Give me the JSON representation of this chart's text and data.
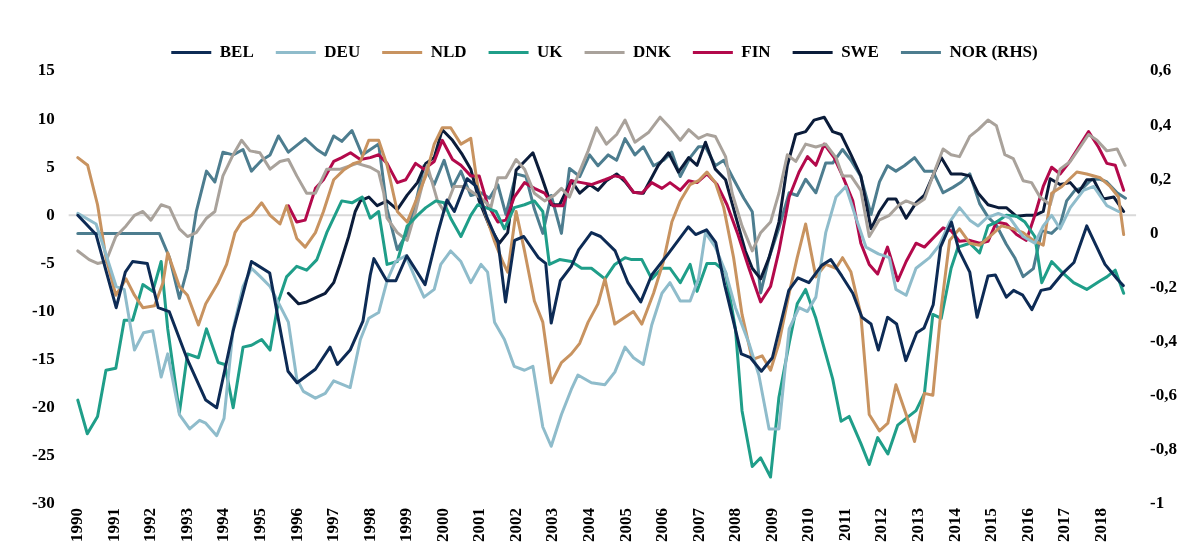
{
  "chart_data": {
    "type": "line",
    "legend": "top",
    "marker": "none",
    "ref_lines": [
      {
        "axis": "y",
        "value": 0,
        "color": "#d9d9d9"
      }
    ],
    "xlim": [
      1989.75,
      2018.95
    ],
    "xticks": [
      1990,
      1991,
      1992,
      1993,
      1994,
      1995,
      1996,
      1997,
      1998,
      1999,
      2000,
      2001,
      2002,
      2003,
      2004,
      2005,
      2006,
      2007,
      2008,
      2009,
      2010,
      2011,
      2012,
      2013,
      2014,
      2015,
      2016,
      2017,
      2018
    ],
    "ylim": [
      -30,
      15
    ],
    "yticks": [
      -30,
      -25,
      -20,
      -15,
      -10,
      -5,
      0,
      5,
      10,
      15
    ],
    "y2lim": [
      -1,
      0.6
    ],
    "y2ticks": [
      -1,
      {
        "value": -0.8,
        "label": "-0,8"
      },
      {
        "value": -0.6,
        "label": "-0,6"
      },
      {
        "value": -0.4,
        "label": "-0,4"
      },
      {
        "value": -0.2,
        "label": "-0,2"
      },
      0,
      {
        "value": 0.2,
        "label": "0,2"
      },
      {
        "value": 0.4,
        "label": "0,4"
      },
      {
        "value": 0.6,
        "label": "0,6"
      }
    ],
    "series": [
      {
        "name": "BEL",
        "color": "#0d2b55",
        "x": [
          1990,
          1990.5,
          1991.05,
          1991.3,
          1991.5,
          1991.9,
          1992.2,
          1992.5,
          1993,
          1993.5,
          1993.8,
          1994.25,
          1994.75,
          1995.25,
          1995.75,
          1996,
          1996.5,
          1996.9,
          1997.1,
          1997.45,
          1997.8,
          1998,
          1998.1,
          1998.45,
          1998.7,
          1999,
          1999.5,
          1999.85,
          2000.1,
          2000.3,
          2000.65,
          2000.9,
          2001.2,
          2001.5,
          2001.7,
          2001.95,
          2002.2,
          2002.6,
          2002.8,
          2002.95,
          2003.2,
          2003.5,
          2003.7,
          2004.05,
          2004.3,
          2004.7,
          2005.05,
          2005.4,
          2005.7,
          2006.15,
          2006.7,
          2006.9,
          2007.2,
          2007.45,
          2007.7,
          2008.15,
          2008.4,
          2008.7,
          2009,
          2009.45,
          2009.7,
          2010,
          2010.35,
          2010.6,
          2010.9,
          2011.2,
          2011.45,
          2011.7,
          2011.9,
          2012.15,
          2012.4,
          2012.65,
          2012.95,
          2013.15,
          2013.4,
          2013.6,
          2013.9,
          2014.1,
          2014.4,
          2014.6,
          2014.9,
          2015.1,
          2015.4,
          2015.6,
          2015.85,
          2016.1,
          2016.35,
          2016.6,
          2016.95,
          2017.25,
          2017.6,
          2017.85,
          2018.1,
          2018.45,
          2018.6
        ],
        "values": [
          0,
          -2,
          -9.6,
          -5.9,
          -4.8,
          -5,
          -9.6,
          -10,
          -15,
          -19.2,
          -20,
          -12,
          -4.8,
          -6,
          -16.2,
          -17.4,
          -16,
          -13.7,
          -15.5,
          -14,
          -11,
          -6.2,
          -4.5,
          -6.8,
          -6.8,
          -4.2,
          -7.2,
          -1.8,
          1.6,
          0.4,
          3.8,
          3,
          -0.3,
          -2.9,
          -9,
          -2.6,
          -2.2,
          -4.4,
          -5,
          -11.2,
          -6.8,
          -5.3,
          -3.6,
          -1.8,
          -2.2,
          -3.7,
          -7,
          -9,
          -6.2,
          -4,
          -1.2,
          -2,
          -1.5,
          -2.8,
          -7.3,
          -14.4,
          -14.8,
          -16.2,
          -14.8,
          -7.8,
          -6.5,
          -7,
          -5.2,
          -4.6,
          -6.3,
          -8.1,
          -10.6,
          -11.3,
          -14,
          -10.6,
          -11.3,
          -15.1,
          -12.2,
          -11.7,
          -9.3,
          -3.3,
          -0.7,
          -3.6,
          -5.9,
          -10.6,
          -6.3,
          -6.2,
          -8.5,
          -7.8,
          -8.3,
          -9.8,
          -7.8,
          -7.6,
          -6,
          -4.9,
          -1.1,
          -3.1,
          -5.1,
          -6.7,
          -7.3
        ]
      },
      {
        "name": "DEU",
        "color": "#8fbccb",
        "x": [
          1990,
          1990.5,
          1990.8,
          1991.05,
          1991.27,
          1991.55,
          1991.8,
          1992.05,
          1992.28,
          1992.46,
          1992.78,
          1993.06,
          1993.33,
          1993.5,
          1993.8,
          1994,
          1994.25,
          1994.52,
          1994.75,
          1995,
          1995.26,
          1995.76,
          1995.99,
          1996.17,
          1996.5,
          1996.77,
          1997,
          1997.45,
          1997.73,
          1997.96,
          1998.23,
          1998.46,
          1998.69,
          1998.97,
          1999.24,
          1999.47,
          1999.75,
          1999.93,
          2000.2,
          2000.48,
          2000.75,
          2001.03,
          2001.21,
          2001.4,
          2001.67,
          2001.94,
          2002.22,
          2002.45,
          2002.72,
          2002.95,
          2003.23,
          2003.5,
          2003.68,
          2004.05,
          2004.42,
          2004.69,
          2004.97,
          2005.2,
          2005.47,
          2005.7,
          2005.98,
          2006.2,
          2006.48,
          2006.75,
          2006.98,
          2007.17,
          2007.44,
          2007.72,
          2007.99,
          2008.36,
          2008.63,
          2008.91,
          2009.18,
          2009.46,
          2009.73,
          2009.96,
          2010.19,
          2010.46,
          2010.74,
          2011.01,
          2011.29,
          2011.56,
          2011.9,
          2012.2,
          2012.38,
          2012.66,
          2012.93,
          2013.3,
          2013.57,
          2013.85,
          2014.12,
          2014.4,
          2014.63,
          2014.85,
          2015.18,
          2015.5,
          2015.86,
          2016.18,
          2016.41,
          2016.64,
          2016.87,
          2017.15,
          2017.51,
          2017.79,
          2018.15,
          2018.47
        ],
        "values": [
          0.2,
          -0.9,
          -4.4,
          -7.4,
          -7.7,
          -14,
          -12.2,
          -12,
          -16.8,
          -14.4,
          -20.7,
          -22.2,
          -21.3,
          -21.6,
          -22.9,
          -21.1,
          -11.8,
          -7.4,
          -5.5,
          -6.4,
          -7.4,
          -11.1,
          -17,
          -18.3,
          -19,
          -18.5,
          -17.2,
          -17.9,
          -12.9,
          -10.7,
          -10.1,
          -6.8,
          -4.8,
          -4.2,
          -6.6,
          -8.5,
          -7.7,
          -5.1,
          -3.7,
          -4.8,
          -7,
          -5.1,
          -5.9,
          -11.1,
          -12.9,
          -15.7,
          -16.1,
          -15.7,
          -22,
          -24,
          -20.7,
          -18.1,
          -16.6,
          -17.4,
          -17.6,
          -16.3,
          -13.7,
          -14.8,
          -15.5,
          -11.4,
          -8.1,
          -7,
          -8.9,
          -8.9,
          -6.6,
          -1.8,
          -3.3,
          -5.9,
          -9.6,
          -13.3,
          -16.6,
          -22.2,
          -22.2,
          -11.8,
          -9.6,
          -10,
          -8.5,
          -1.8,
          1.9,
          3,
          -0.3,
          -3.3,
          -4,
          -4.4,
          -7.7,
          -8.3,
          -5.5,
          -4.4,
          -3.1,
          -0.7,
          0.8,
          -0.5,
          -1.1,
          -0.3,
          0.2,
          -0.3,
          -2.2,
          -2.9,
          -1.1,
          0,
          -1.4,
          0.8,
          2.6,
          3,
          1,
          0.4
        ]
      },
      {
        "name": "NLD",
        "color": "#c89360",
        "x": [
          1990,
          1990.27,
          1990.54,
          1990.77,
          1991.04,
          1991.32,
          1991.55,
          1991.78,
          1992.1,
          1992.33,
          1992.46,
          1992.78,
          1993,
          1993.3,
          1993.5,
          1993.84,
          1994.07,
          1994.3,
          1994.48,
          1994.75,
          1995.03,
          1995.26,
          1995.53,
          1995.71,
          1995.99,
          1996.22,
          1996.5,
          1996.72,
          1997,
          1997.27,
          1997.55,
          1997.73,
          1997.96,
          1998.23,
          1998.46,
          1998.74,
          1999.01,
          1999.29,
          1999.52,
          1999.75,
          1999.97,
          2000.2,
          2000.48,
          2000.75,
          2000.94,
          2001.16,
          2001.39,
          2001.62,
          2001.76,
          2001.99,
          2002.22,
          2002.49,
          2002.72,
          2002.95,
          2003.23,
          2003.5,
          2003.73,
          2003.96,
          2004.23,
          2004.42,
          2004.69,
          2005.2,
          2005.43,
          2005.75,
          2006.02,
          2006.25,
          2006.48,
          2006.75,
          2006.98,
          2007.21,
          2007.44,
          2007.67,
          2007.94,
          2008.17,
          2008.45,
          2008.72,
          2008.95,
          2009.18,
          2009.46,
          2009.68,
          2009.91,
          2010.19,
          2010.46,
          2010.74,
          2010.92,
          2011.15,
          2011.42,
          2011.65,
          2011.93,
          2012.16,
          2012.38,
          2012.66,
          2012.89,
          2013.16,
          2013.39,
          2013.62,
          2013.85,
          2014.12,
          2014.4,
          2014.67,
          2014.95,
          2015.27,
          2015.59,
          2015.86,
          2016.14,
          2016.41,
          2016.64,
          2016.92,
          2017.33,
          2017.6,
          2017.97,
          2018.24,
          2018.47,
          2018.61
        ],
        "values": [
          6,
          5.2,
          1.1,
          -4.4,
          -8.3,
          -6.6,
          -8.3,
          -9.6,
          -9.4,
          -7,
          -3.9,
          -7.4,
          -8.3,
          -11.4,
          -9.2,
          -7,
          -5.1,
          -1.8,
          -0.7,
          0,
          1.3,
          0,
          -0.9,
          1,
          -2.4,
          -3.3,
          -1.8,
          0.4,
          3.7,
          4.7,
          5.4,
          5.6,
          7.8,
          7.8,
          5.2,
          0.4,
          -0.7,
          1.9,
          4.1,
          7.4,
          9.1,
          9.1,
          7.4,
          8,
          3,
          0,
          -2.6,
          -4.8,
          -5.9,
          0.4,
          -3.7,
          -8.9,
          -11.1,
          -17.4,
          -15.3,
          -14.4,
          -13.3,
          -11.1,
          -9.2,
          -6.6,
          -11.3,
          -10,
          -11.3,
          -8.1,
          -4.8,
          -0.7,
          1.5,
          3.2,
          3.6,
          4.5,
          3.4,
          0.8,
          -4.4,
          -10.3,
          -15,
          -14.6,
          -16.1,
          -13.3,
          -8.1,
          -4.4,
          -0.9,
          -6.4,
          -5.1,
          -5.5,
          -4.4,
          -5.9,
          -10.3,
          -20.7,
          -22.4,
          -21.6,
          -17.6,
          -20.7,
          -23.5,
          -18.5,
          -18.7,
          -9.6,
          -2.6,
          -1.4,
          -2.9,
          -3.1,
          -2.2,
          -1.1,
          -1.4,
          -1.8,
          -2.6,
          -3.1,
          2.3,
          3,
          4.5,
          4.3,
          3.9,
          3,
          1.9,
          -2
        ]
      },
      {
        "name": "UK",
        "color": "#1f9e89",
        "x": [
          1990,
          1990.26,
          1990.54,
          1990.77,
          1991.04,
          1991.27,
          1991.5,
          1991.78,
          1992.05,
          1992.28,
          1992.46,
          1992.78,
          1993,
          1993.3,
          1993.52,
          1993.84,
          1994.02,
          1994.25,
          1994.52,
          1994.75,
          1995.03,
          1995.26,
          1995.49,
          1995.71,
          1995.99,
          1996.26,
          1996.54,
          1996.81,
          1997.22,
          1997.5,
          1997.78,
          1998,
          1998.23,
          1998.46,
          1998.74,
          1999.01,
          1999.29,
          1999.52,
          1999.79,
          2000.02,
          2000.2,
          2000.48,
          2000.75,
          2000.94,
          2001.16,
          2001.44,
          2001.67,
          2001.94,
          2002.22,
          2002.49,
          2002.72,
          2002.9,
          2003.18,
          2003.5,
          2003.78,
          2004.05,
          2004.42,
          2004.69,
          2004.97,
          2005.15,
          2005.43,
          2005.7,
          2005.98,
          2006.2,
          2006.48,
          2006.75,
          2006.94,
          2007.21,
          2007.44,
          2007.72,
          2007.99,
          2008.17,
          2008.45,
          2008.68,
          2008.95,
          2009.18,
          2009.46,
          2009.68,
          2009.91,
          2010.19,
          2010.46,
          2010.65,
          2010.88,
          2011.1,
          2011.42,
          2011.65,
          2011.88,
          2012.16,
          2012.43,
          2012.66,
          2012.93,
          2013.16,
          2013.39,
          2013.62,
          2013.89,
          2014.08,
          2014.4,
          2014.67,
          2014.9,
          2015.13,
          2015.4,
          2015.68,
          2015.91,
          2016.18,
          2016.37,
          2016.64,
          2016.92,
          2017.24,
          2017.6,
          2017.97,
          2018.15,
          2018.38,
          2018.61
        ],
        "values": [
          -19.2,
          -22.7,
          -20.9,
          -16.1,
          -15.9,
          -10.9,
          -10.9,
          -7.2,
          -7.9,
          -4.8,
          -11.8,
          -20.5,
          -14.4,
          -14.8,
          -11.8,
          -15.3,
          -15.5,
          -20,
          -13.7,
          -13.5,
          -12.9,
          -14,
          -8.9,
          -6.4,
          -5.3,
          -5.7,
          -4.6,
          -1.8,
          1.5,
          1.3,
          1.9,
          -0.3,
          0.4,
          -5.1,
          -4.8,
          -1.1,
          0,
          0.8,
          1.5,
          1.3,
          -0.3,
          -2.2,
          0,
          1.1,
          0.8,
          0.4,
          -1.4,
          0.8,
          1.1,
          1.5,
          0.4,
          -5.1,
          -4.6,
          -4.8,
          -5.5,
          -5.5,
          -6.6,
          -5.1,
          -4.4,
          -4.6,
          -4.6,
          -6.6,
          -5.5,
          -5.5,
          -7,
          -5.1,
          -7.9,
          -5,
          -5,
          -5.9,
          -11.8,
          -20.3,
          -26.1,
          -25.2,
          -27.2,
          -18.9,
          -13.3,
          -9.2,
          -7.7,
          -10.7,
          -14.4,
          -17,
          -21.4,
          -20.9,
          -23.7,
          -25.9,
          -23.1,
          -24.8,
          -21.8,
          -21.1,
          -20.3,
          -18.5,
          -10.3,
          -10.7,
          -5.5,
          -3.3,
          -2.9,
          -3.9,
          -1.1,
          -0.7,
          0,
          -0.1,
          -0.7,
          -2.2,
          -7,
          -4.8,
          -5.9,
          -7,
          -7.7,
          -6.8,
          -6.4,
          -5.7,
          -8.1
        ]
      },
      {
        "name": "DNK",
        "color": "#a9a29b",
        "x": [
          1990,
          1990.31,
          1990.54,
          1990.77,
          1991.04,
          1991.32,
          1991.55,
          1991.78,
          1992,
          1992.28,
          1992.51,
          1992.78,
          1993,
          1993.24,
          1993.52,
          1993.75,
          1993.97,
          1994.25,
          1994.48,
          1994.71,
          1994.98,
          1995.26,
          1995.53,
          1995.76,
          1995.99,
          1996.26,
          1996.5,
          1996.81,
          1997.18,
          1997.64,
          1998,
          1998.23,
          1998.37,
          1998.46,
          1998.74,
          1999.01,
          1999.24,
          1999.56,
          1999.84,
          2000.02,
          2000.29,
          2000.57,
          2000.84,
          2001.12,
          2001.3,
          2001.49,
          2001.71,
          2001.99,
          2002.22,
          2002.49,
          2002.77,
          2003.04,
          2003.23,
          2003.45,
          2003.68,
          2003.96,
          2004.19,
          2004.46,
          2004.74,
          2004.97,
          2005.24,
          2005.61,
          2005.93,
          2006.2,
          2006.48,
          2006.71,
          2006.98,
          2007.21,
          2007.44,
          2007.72,
          2007.9,
          2008.17,
          2008.45,
          2008.68,
          2008.95,
          2009.18,
          2009.41,
          2009.64,
          2009.91,
          2010.19,
          2010.46,
          2010.74,
          2010.92,
          2011.15,
          2011.42,
          2011.65,
          2011.92,
          2012.2,
          2012.47,
          2012.66,
          2012.93,
          2013.16,
          2013.39,
          2013.67,
          2013.89,
          2014.12,
          2014.4,
          2014.63,
          2014.9,
          2015.13,
          2015.36,
          2015.59,
          2015.86,
          2016.09,
          2016.32,
          2016.6,
          2016.87,
          2017.15,
          2017.42,
          2017.65,
          2017.88,
          2018.15,
          2018.43,
          2018.65
        ],
        "values": [
          -3.7,
          -4.6,
          -5,
          -4.8,
          -2.2,
          -1.1,
          0,
          0.4,
          -0.5,
          1.1,
          0.8,
          -1.4,
          -2.2,
          -1.8,
          -0.3,
          0.4,
          4.1,
          6.3,
          7.8,
          6.7,
          6.5,
          4.8,
          5.6,
          5.8,
          4.1,
          2.3,
          2.3,
          4.8,
          4.8,
          5.4,
          5,
          4.5,
          2.3,
          -0.3,
          -1.8,
          -2.6,
          0.4,
          5.2,
          1.5,
          0.4,
          3,
          3,
          2.3,
          1.5,
          0.8,
          3.9,
          3.9,
          5.8,
          4.8,
          2.3,
          1.5,
          2.1,
          2.8,
          1.9,
          4.1,
          6.7,
          9.1,
          7.4,
          8.4,
          9.9,
          7.6,
          8.6,
          10.2,
          9.1,
          7.8,
          8.9,
          8,
          8.4,
          8.2,
          6.1,
          2.3,
          -1.1,
          -3.7,
          -1.8,
          -0.7,
          2.3,
          6.3,
          5.6,
          7.4,
          7.1,
          7.4,
          6,
          4.1,
          4.1,
          2.6,
          -2.2,
          -0.5,
          0,
          1.1,
          1.5,
          1.1,
          1.7,
          4.1,
          6.9,
          6.3,
          6.1,
          8.2,
          8.9,
          9.9,
          9.3,
          6.3,
          5.9,
          3.6,
          3.4,
          1.9,
          1.1,
          4.8,
          5.6,
          7.1,
          8.4,
          7.8,
          6.7,
          6.9,
          5.2
        ]
      },
      {
        "name": "FIN",
        "color": "#b3094b",
        "x": [
          1995.76,
          1995.99,
          1996.22,
          1996.5,
          1996.72,
          1997,
          1997.22,
          1997.46,
          1997.73,
          1998,
          1998.23,
          1998.46,
          1998.74,
          1998.97,
          1999.24,
          1999.47,
          1999.75,
          1999.97,
          2000.25,
          2000.48,
          2000.75,
          2000.98,
          2001.21,
          2001.49,
          2001.71,
          2001.94,
          2002.22,
          2002.49,
          2002.77,
          2003,
          2003.27,
          2003.5,
          2003.78,
          2004.05,
          2004.42,
          2004.69,
          2004.92,
          2005.2,
          2005.43,
          2005.7,
          2005.98,
          2006.2,
          2006.48,
          2006.71,
          2006.94,
          2007.21,
          2007.49,
          2007.76,
          2008.04,
          2008.36,
          2008.68,
          2008.95,
          2009.18,
          2009.46,
          2009.73,
          2009.96,
          2010.19,
          2010.42,
          2010.69,
          2010.92,
          2011.2,
          2011.42,
          2011.65,
          2011.88,
          2012.15,
          2012.43,
          2012.66,
          2012.93,
          2013.16,
          2013.44,
          2013.67,
          2013.89,
          2014.12,
          2014.4,
          2014.67,
          2014.9,
          2015.13,
          2015.4,
          2015.68,
          2015.95,
          2016.18,
          2016.41,
          2016.64,
          2016.87,
          2017.1,
          2017.38,
          2017.65,
          2017.92,
          2018.15,
          2018.38,
          2018.61
        ],
        "values": [
          1,
          -0.7,
          -0.5,
          2.8,
          3.7,
          5.6,
          6,
          6.5,
          5.8,
          6,
          6.3,
          5.4,
          3.4,
          3.7,
          5.4,
          4.8,
          5.6,
          7.8,
          5.8,
          5.2,
          4.1,
          4.1,
          1.1,
          -0.7,
          -0.5,
          1.9,
          3.4,
          2.8,
          2.3,
          1,
          1,
          3.6,
          3.4,
          3.2,
          3.7,
          4.1,
          3.9,
          2.4,
          2.3,
          3.4,
          2.8,
          3.4,
          2.6,
          3.6,
          3.4,
          4.3,
          3.2,
          1.1,
          -1.8,
          -5.5,
          -9,
          -7.4,
          -3.7,
          1.9,
          4.5,
          6.1,
          5.2,
          7.4,
          6,
          4.1,
          1.5,
          -2.9,
          -5.1,
          -6.1,
          -3.3,
          -6.8,
          -4.8,
          -2.9,
          -3.3,
          -2.2,
          -1.3,
          -1.6,
          -2.7,
          -2.6,
          -2.9,
          -2.7,
          -0.7,
          -0.9,
          -2,
          -2.6,
          0,
          3,
          5,
          4.3,
          5.4,
          7.1,
          8.7,
          7.1,
          5.4,
          5.2,
          2.6
        ]
      },
      {
        "name": "SWE",
        "color": "#0b1c3a",
        "x": [
          1995.76,
          1996.04,
          1996.26,
          1996.54,
          1996.77,
          1997,
          1997.18,
          1997.41,
          1997.59,
          1997.73,
          1997.96,
          1998.19,
          1998.46,
          1998.74,
          1999.01,
          1999.29,
          1999.52,
          1999.75,
          1999.97,
          2000.25,
          2000.52,
          2000.75,
          2000.98,
          2001.26,
          2001.53,
          2001.76,
          2001.99,
          2002.22,
          2002.45,
          2002.68,
          2002.95,
          2003.18,
          2003.5,
          2003.73,
          2004,
          2004.23,
          2004.46,
          2004.74,
          2004.97,
          2005.2,
          2005.47,
          2005.88,
          2006.16,
          2006.43,
          2006.71,
          2006.94,
          2007.17,
          2007.44,
          2007.72,
          2007.99,
          2008.26,
          2008.45,
          2008.68,
          2008.91,
          2009.18,
          2009.41,
          2009.64,
          2009.91,
          2010.14,
          2010.42,
          2010.65,
          2010.88,
          2011.15,
          2011.42,
          2011.7,
          2011.93,
          2012.16,
          2012.38,
          2012.66,
          2012.93,
          2013.16,
          2013.39,
          2013.62,
          2013.89,
          2014.17,
          2014.4,
          2014.63,
          2014.9,
          2015.18,
          2015.4,
          2015.68,
          2015.95,
          2016.18,
          2016.41,
          2016.6,
          2016.87,
          2017.15,
          2017.38,
          2017.6,
          2017.79,
          2018.06,
          2018.34,
          2018.61
        ],
        "values": [
          -8.1,
          -9.2,
          -9,
          -8.5,
          -8.1,
          -7,
          -5,
          -2.2,
          0.4,
          1.5,
          1.9,
          1,
          1.5,
          0.6,
          2.1,
          3.4,
          5.4,
          6,
          8.9,
          7.8,
          6.3,
          4.8,
          1.5,
          -1.1,
          -2.9,
          -1.8,
          4.7,
          5.6,
          6.5,
          4.1,
          1.1,
          1.1,
          3.6,
          2.3,
          3.2,
          2.6,
          3.6,
          4.3,
          3.5,
          2.4,
          2.3,
          5.2,
          6.5,
          4.5,
          6,
          5.2,
          7.6,
          4.8,
          3.7,
          0,
          -3.7,
          -5.5,
          -6.6,
          -4.4,
          -0.7,
          5.2,
          8.4,
          8.7,
          9.9,
          10.2,
          8.7,
          8.4,
          6.3,
          4.1,
          -1.4,
          0.4,
          1.7,
          1.7,
          -0.3,
          1.3,
          2.1,
          4.1,
          6,
          4.3,
          4.3,
          4.1,
          2.3,
          1.1,
          0.8,
          0.8,
          -0.1,
          0,
          0,
          0.4,
          3.8,
          3.2,
          3.4,
          2.4,
          3.7,
          3.7,
          1.7,
          1.9,
          0.4
        ]
      },
      {
        "name": "NOR (RHS)",
        "color": "#4d7d8f",
        "axis": "y2",
        "x": [
          1990,
          1992.23,
          1992.51,
          1992.78,
          1993,
          1993.24,
          1993.52,
          1993.75,
          1993.97,
          1994.25,
          1994.52,
          1994.75,
          1995.03,
          1995.26,
          1995.49,
          1995.76,
          1996.22,
          1996.54,
          1996.77,
          1997,
          1997.22,
          1997.5,
          1997.78,
          1998.23,
          1998.46,
          1998.74,
          1999.01,
          1999.24,
          1999.47,
          1999.75,
          2000.02,
          2000.25,
          2000.48,
          2000.75,
          2001.03,
          2001.26,
          2001.49,
          2001.71,
          2001.99,
          2002.26,
          2002.49,
          2002.72,
          2002.95,
          2003.23,
          2003.45,
          2003.73,
          2004,
          2004.23,
          2004.51,
          2004.74,
          2004.97,
          2005.24,
          2005.47,
          2005.75,
          2006.02,
          2006.25,
          2006.48,
          2006.75,
          2006.98,
          2007.17,
          2007.44,
          2007.67,
          2007.94,
          2008.22,
          2008.45,
          2008.68,
          2008.91,
          2009.18,
          2009.46,
          2009.68,
          2009.91,
          2010.19,
          2010.46,
          2010.65,
          2010.92,
          2011.15,
          2011.42,
          2011.7,
          2011.93,
          2012.15,
          2012.38,
          2012.61,
          2012.89,
          2013.16,
          2013.39,
          2013.67,
          2013.94,
          2014.17,
          2014.4,
          2014.67,
          2014.9,
          2015.13,
          2015.4,
          2015.63,
          2015.86,
          2016.14,
          2016.37,
          2016.64,
          2016.87,
          2017.05,
          2017.28,
          2017.51,
          2017.74,
          2017.97,
          2018.15,
          2018.43,
          2018.66
        ],
        "values": [
          0,
          0,
          -0.09,
          -0.24,
          -0.13,
          0.08,
          0.23,
          0.19,
          0.3,
          0.29,
          0.31,
          0.23,
          0.27,
          0.29,
          0.36,
          0.3,
          0.35,
          0.31,
          0.29,
          0.36,
          0.34,
          0.38,
          0.29,
          0.33,
          0.09,
          -0.06,
          0,
          0.11,
          0.25,
          0.18,
          0.27,
          0.17,
          0.23,
          0.14,
          0.15,
          0.13,
          0.18,
          0.07,
          0.22,
          0.21,
          0.09,
          0,
          0.14,
          0,
          0.24,
          0.21,
          0.29,
          0.25,
          0.29,
          0.27,
          0.35,
          0.29,
          0.32,
          0.25,
          0.27,
          0.3,
          0.21,
          0.28,
          0.32,
          0.32,
          0.25,
          0.27,
          0.2,
          0.13,
          0.08,
          -0.22,
          -0.09,
          0.02,
          0.15,
          0.14,
          0.2,
          0.15,
          0.26,
          0.26,
          0.31,
          0.27,
          0.21,
          0.07,
          0.19,
          0.25,
          0.23,
          0.25,
          0.28,
          0.23,
          0.23,
          0.15,
          0.17,
          0.19,
          0.22,
          0.11,
          0.06,
          0.03,
          -0.04,
          -0.09,
          -0.16,
          -0.13,
          0.01,
          0,
          0.03,
          0.12,
          0.16,
          0.17,
          0.2,
          0.2,
          0.19,
          0.15,
          0.13
        ]
      }
    ]
  }
}
